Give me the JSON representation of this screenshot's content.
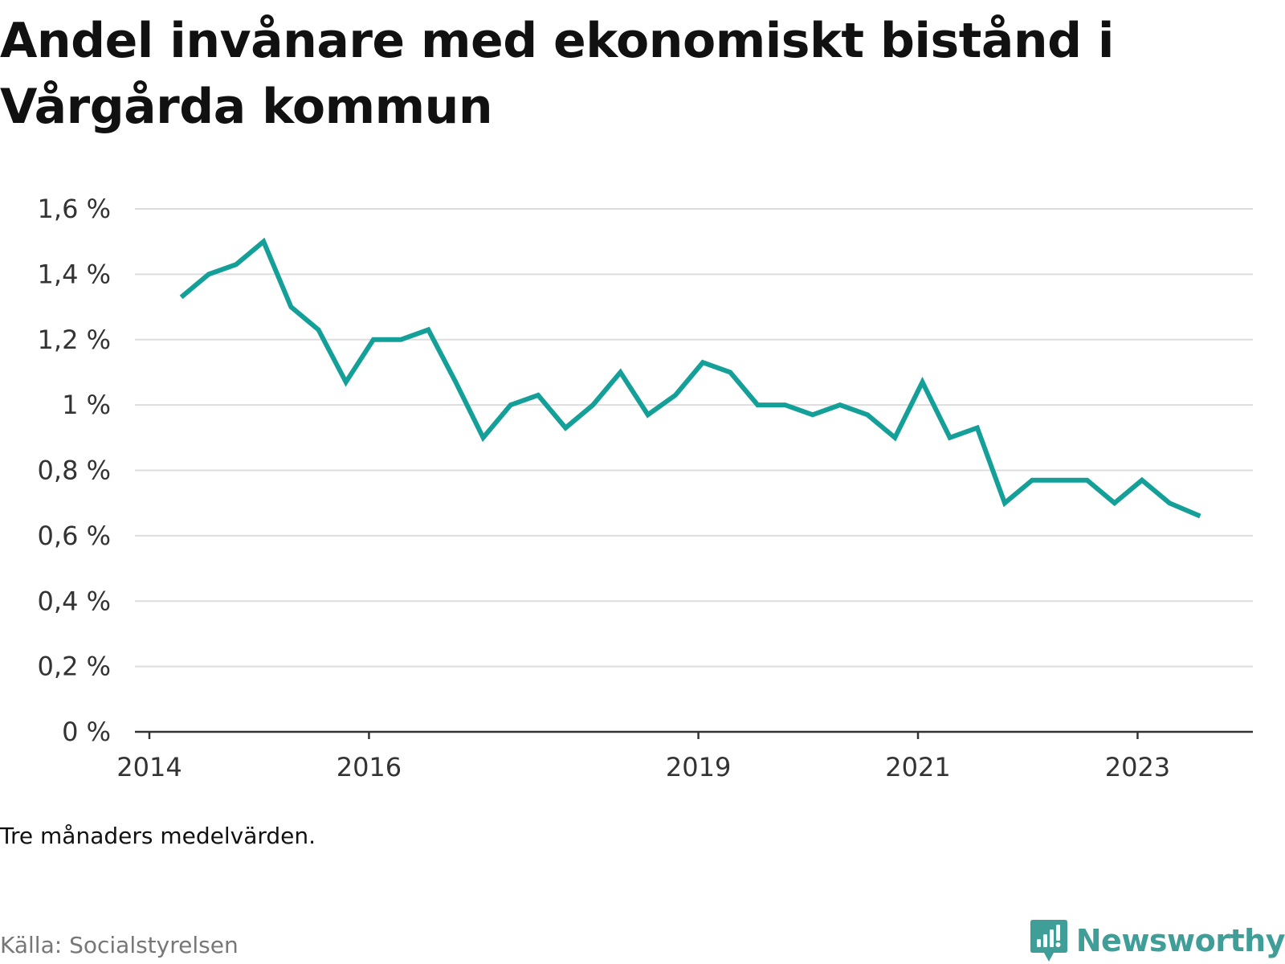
{
  "title": "Andel invånare med ekonomiskt bistånd i Vårgårda kommun",
  "note": "Tre månaders medelvärden.",
  "source": "Källa: Socialstyrelsen",
  "brand": {
    "name": "Newsworthy",
    "icon": "newsworthy-logo-icon",
    "color": "#3f9e97"
  },
  "chart_data": {
    "type": "line",
    "title": "Andel invånare med ekonomiskt bistånd i Vårgårda kommun",
    "xlabel": "",
    "ylabel": "",
    "ylim": [
      0,
      1.6
    ],
    "yticks": [
      0,
      0.2,
      0.4,
      0.6,
      0.8,
      1.0,
      1.2,
      1.4,
      1.6
    ],
    "ytick_labels": [
      "0 %",
      "0,2 %",
      "0,4 %",
      "0,6 %",
      "0,8 %",
      "1 %",
      "1,2 %",
      "1,4 %",
      "1,6 %"
    ],
    "xlim": [
      2014.0,
      2024.05
    ],
    "xticks": [
      2014,
      2016,
      2019,
      2021,
      2023
    ],
    "xtick_labels": [
      "2014",
      "2016",
      "2019",
      "2021",
      "2023"
    ],
    "grid": true,
    "legend": "none",
    "line_color": "#14a098",
    "series": [
      {
        "x": [
          2014.29,
          2014.54,
          2014.79,
          2015.04,
          2015.29,
          2015.54,
          2015.79,
          2016.04,
          2016.29,
          2016.54,
          2016.79,
          2017.04,
          2017.29,
          2017.54,
          2017.79,
          2018.04,
          2018.29,
          2018.54,
          2018.79,
          2019.04,
          2019.29,
          2019.54,
          2019.79,
          2020.04,
          2020.29,
          2020.54,
          2020.79,
          2021.04,
          2021.29,
          2021.54,
          2021.79,
          2022.04,
          2022.29,
          2022.54,
          2022.79,
          2023.04,
          2023.29,
          2023.57
        ],
        "values": [
          1.33,
          1.4,
          1.43,
          1.5,
          1.3,
          1.23,
          1.07,
          1.2,
          1.2,
          1.23,
          1.07,
          0.9,
          1.0,
          1.03,
          0.93,
          1.0,
          1.1,
          0.97,
          1.03,
          1.13,
          1.1,
          1.0,
          1.0,
          0.97,
          1.0,
          0.97,
          0.9,
          1.07,
          0.9,
          0.93,
          0.7,
          0.77,
          0.77,
          0.77,
          0.7,
          0.77,
          0.7,
          0.66
        ]
      }
    ]
  }
}
